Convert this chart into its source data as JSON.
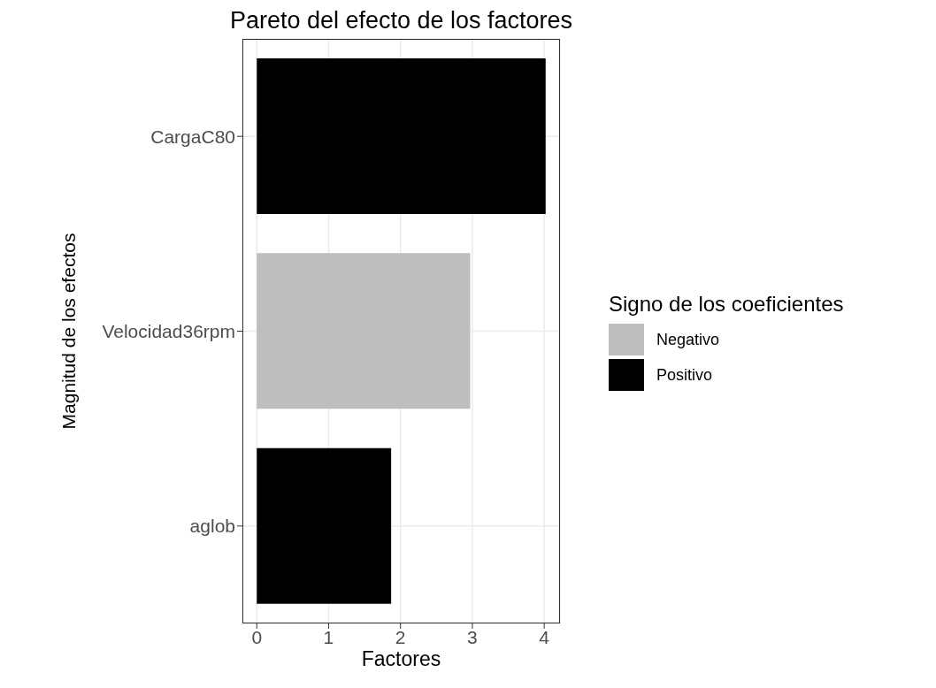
{
  "chart_data": {
    "type": "bar",
    "orientation": "horizontal",
    "stacked": true,
    "title": "Pareto del efecto de los factores",
    "xlabel": "Factores",
    "ylabel": "Magnitud de los efectos",
    "legend_title": "Signo de los coeficientes",
    "categories": [
      "CargaC80",
      "Velocidad36rpm",
      "aglob"
    ],
    "series": [
      {
        "name": "Negativo",
        "color": "#bebebe",
        "values": [
          null,
          2.97,
          null
        ]
      },
      {
        "name": "Positivo",
        "color": "#000000",
        "values": [
          4.02,
          null,
          1.87
        ]
      }
    ],
    "xlim": [
      -0.2,
      4.22
    ],
    "xticks": [
      0,
      1,
      2,
      3,
      4
    ],
    "grid": true,
    "legend": "right"
  }
}
